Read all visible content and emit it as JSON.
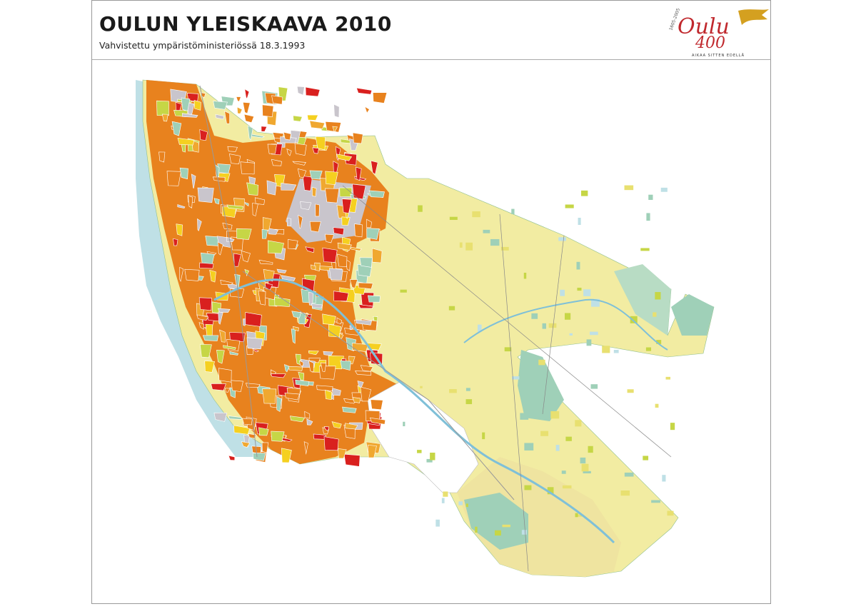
{
  "header": {
    "title": "OULUN YLEISKAAVA 2010",
    "subtitle": "Vahvistettu ympäristöministeriössä 18.3.1993"
  },
  "logo": {
    "years": "1605-2005",
    "name": "Oulu",
    "number": "400",
    "tagline": "AIKAA SITTEN EDELLÄ"
  },
  "colors": {
    "sea": "#bfe0e6",
    "rural": "#f2eca2",
    "residential": "#e8821e",
    "center": "#d9201e",
    "green": "#c6d646",
    "industry": "#c9c5cc",
    "nature": "#9fd0b8"
  }
}
